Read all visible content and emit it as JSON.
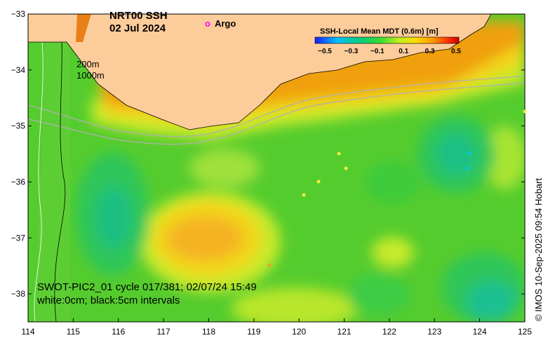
{
  "title": {
    "product": "NRT00 SSH",
    "date": "02 Jul 2024"
  },
  "argo_legend": {
    "marker": "o",
    "label": "Argo",
    "color": "#ff00ff"
  },
  "contour_legend": {
    "shallow": "200m",
    "deep": "1000m"
  },
  "colorbar": {
    "title": "SSH-Local Mean MDT (0.6m) [m]",
    "ticks": [
      "−0.5",
      "−0.3",
      "−0.1",
      "0.1",
      "0.3",
      "0.5"
    ],
    "colors": [
      "#1a1aff",
      "#00bfff",
      "#00cc88",
      "#33dd33",
      "#bbee22",
      "#ffdd00",
      "#ff9900",
      "#ff3300",
      "#cc0000"
    ]
  },
  "map": {
    "lon_range": [
      114,
      125
    ],
    "lat_range": [
      -38.5,
      -33
    ],
    "x_ticks": [
      "114",
      "115",
      "116",
      "117",
      "118",
      "119",
      "120",
      "121",
      "122",
      "123",
      "124",
      "125"
    ],
    "y_ticks": [
      "−33",
      "−34",
      "−35",
      "−36",
      "−37",
      "−38"
    ],
    "land_color": "#fdcc9b"
  },
  "notes": {
    "line1": "SWOT-PIC2_01 cycle 017/381; 02/07/24 15:49",
    "line2": "white:0cm; black:5cm intervals"
  },
  "credit": "© IMOS 10-Sep-2025 09:54 Hobart"
}
